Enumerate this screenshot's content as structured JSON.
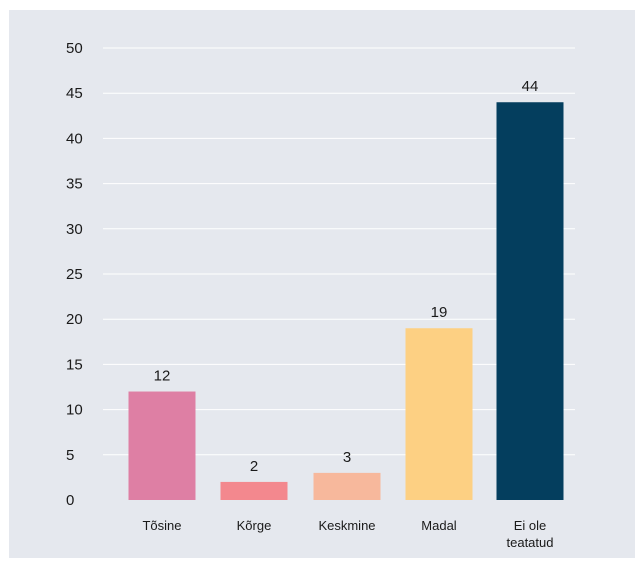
{
  "chart_data": {
    "type": "bar",
    "categories": [
      "Tõsine",
      "Kõrge",
      "Keskmine",
      "Madal",
      "Ei ole teatatud"
    ],
    "category_lines": [
      [
        "Tõsine"
      ],
      [
        "Kõrge"
      ],
      [
        "Keskmine"
      ],
      [
        "Madal"
      ],
      [
        "Ei ole",
        "teatatud"
      ]
    ],
    "values": [
      12,
      2,
      3,
      19,
      44
    ],
    "data_labels": [
      "12",
      "2",
      "3",
      "19",
      "44"
    ],
    "colors": [
      "#de7fa4",
      "#f3888e",
      "#f7b89c",
      "#fdd083",
      "#043e5e"
    ],
    "ylim": [
      0,
      50
    ],
    "yticks": [
      0,
      5,
      10,
      15,
      20,
      25,
      30,
      35,
      40,
      45,
      50
    ],
    "grid": true,
    "gridline_color": "#ffffff",
    "background_color": "#e5e8ee",
    "legend": false,
    "title": "",
    "xlabel": "",
    "ylabel": ""
  }
}
